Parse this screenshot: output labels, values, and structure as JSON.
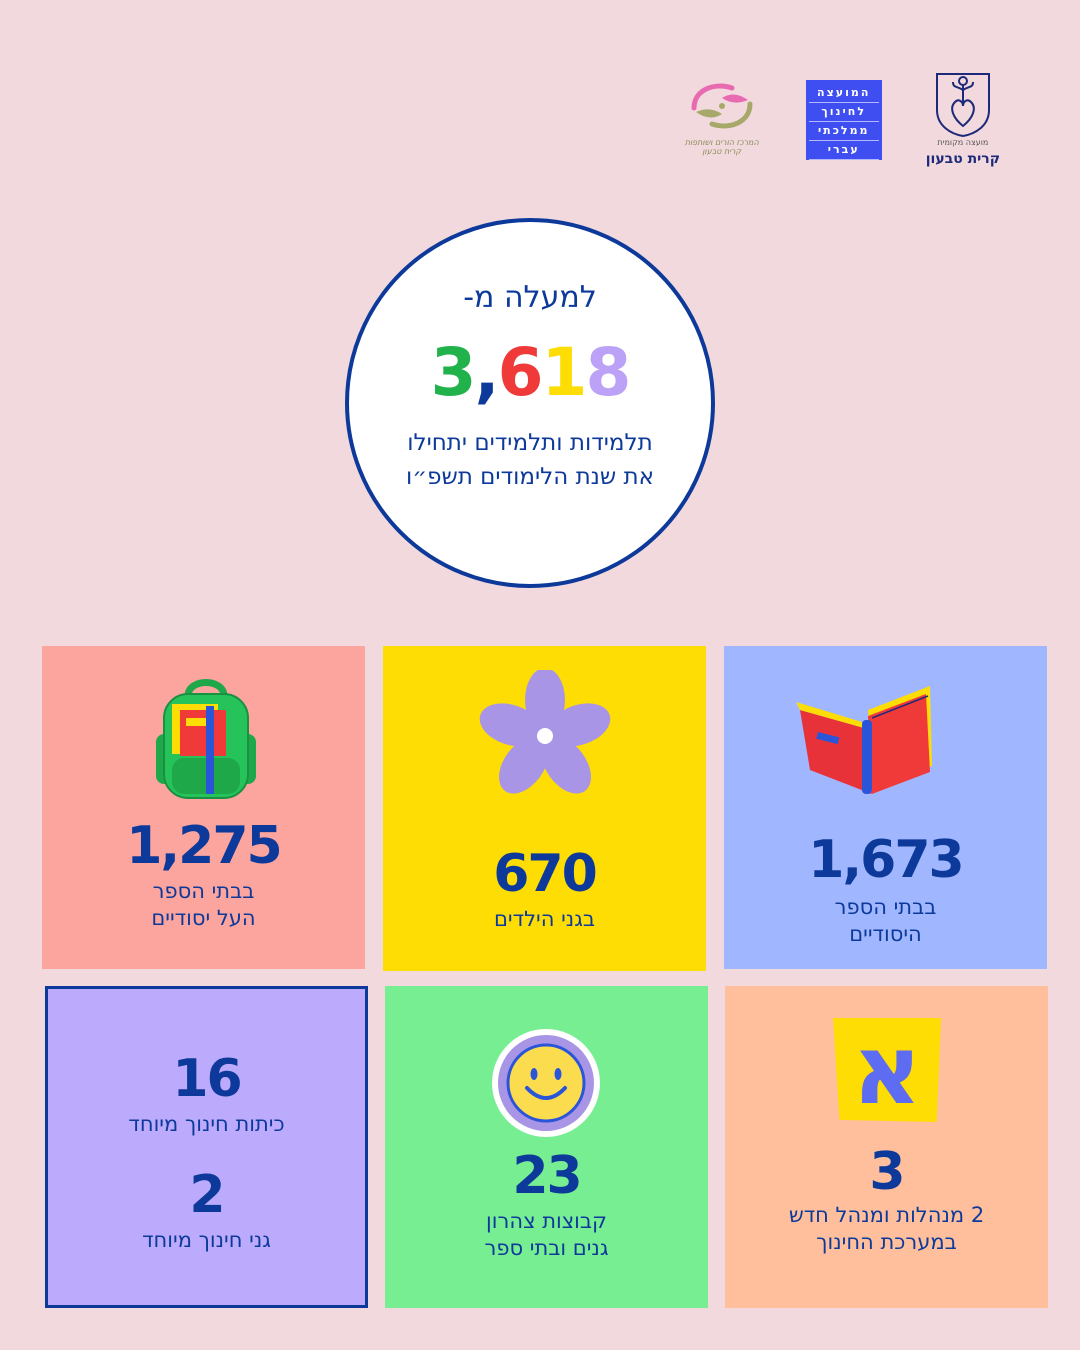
{
  "logos": {
    "kiryat_tivon": {
      "name": "קרית טבעון",
      "sub": "מועצה מקומית"
    },
    "council_lines": [
      "המועצה",
      "לחינוך",
      "ממלכתי",
      "עברי"
    ],
    "community_caption": "המרכז הורים ושותפות קרית טבעון"
  },
  "hero": {
    "above": "למעלה מ-",
    "digits": [
      {
        "ch": "3",
        "color": "#22b24c"
      },
      {
        "ch": ",",
        "color": "#0d3a9a"
      },
      {
        "ch": "6",
        "color": "#f03a3a"
      },
      {
        "ch": "1",
        "color": "#fedd05"
      },
      {
        "ch": "8",
        "color": "#bca2f7"
      }
    ],
    "desc": "תלמידות ותלמידים יתחילו את שנת הלימודים תשפ״ו"
  },
  "tiles": {
    "high_school": {
      "num": "1,275",
      "line1": "בבתי הספר",
      "line2": "העל יסודיים",
      "icon": "backpack-icon"
    },
    "kindergarten": {
      "num": "670",
      "line1": "בגני הילדים",
      "icon": "flower-icon"
    },
    "primary": {
      "num": "1,673",
      "line1": "בבתי הספר",
      "line2": "היסודיים",
      "icon": "book-icon"
    },
    "special_ed": {
      "num1": "16",
      "lbl1": "כיתות חינוך מיוחד",
      "num2": "2",
      "lbl2": "גני חינוך מיוחד"
    },
    "afternoon": {
      "num": "23",
      "line1": "קבוצות צהרון",
      "line2": "גנים ובתי ספר",
      "icon": "smiley-icon"
    },
    "principals": {
      "num": "3",
      "line1": "2 מנהלות ומנהל חדש",
      "line2": "במערכת החינוך",
      "icon": "alef-letter-icon",
      "letter": "א"
    }
  },
  "colors": {
    "background": "#f2d9dd",
    "navy": "#0d3a9a"
  }
}
